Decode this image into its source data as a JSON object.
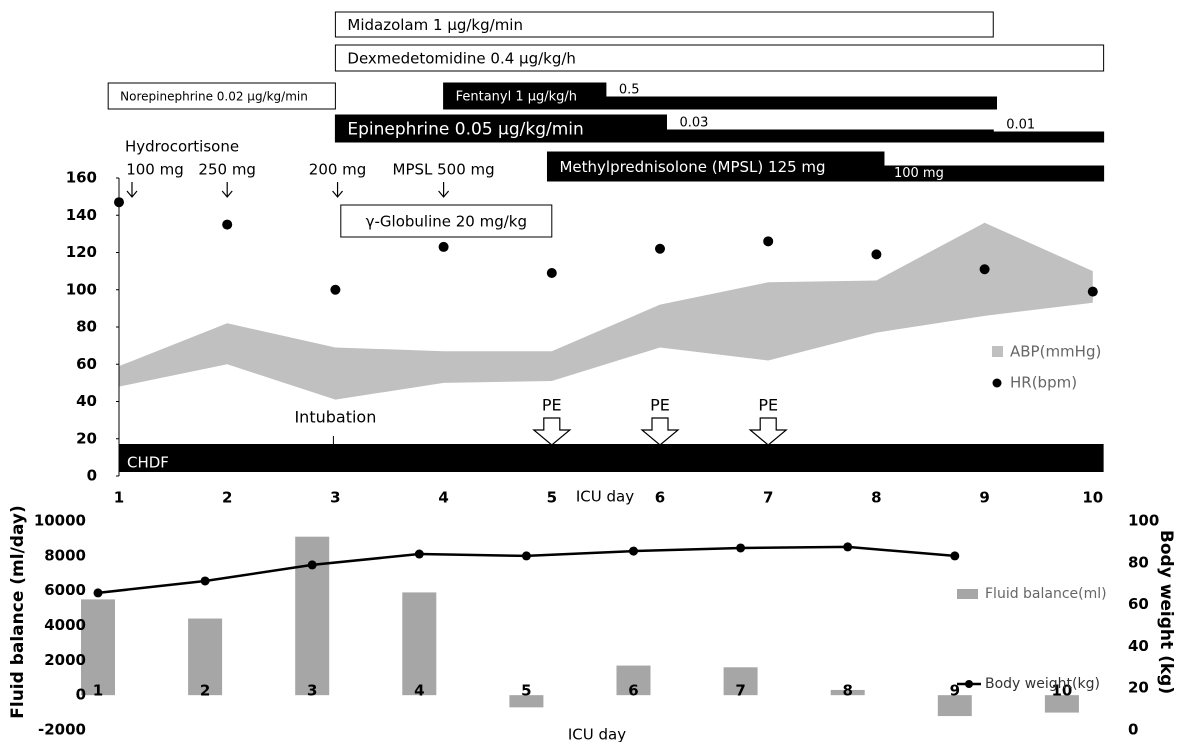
{
  "chart_data": [
    {
      "type": "combo",
      "x": [
        1,
        2,
        3,
        4,
        5,
        6,
        7,
        8,
        9,
        10
      ],
      "xticks": [
        1,
        2,
        3,
        4,
        5,
        6,
        7,
        8,
        9,
        10
      ],
      "xlim": [
        1,
        10.1
      ],
      "xlabel": "ICU day",
      "ylim": [
        0,
        160
      ],
      "yticks": [
        0,
        20,
        40,
        60,
        80,
        100,
        120,
        140,
        160
      ],
      "legend": "right",
      "series": [
        {
          "name": "ABP(mmHg)",
          "type": "range",
          "color": "#c0c0c0",
          "low": [
            48,
            60,
            41,
            50,
            51,
            69,
            62,
            77,
            86,
            93
          ],
          "high": [
            59,
            82,
            69,
            67,
            67,
            92,
            104,
            105,
            136,
            110
          ]
        },
        {
          "name": "HR(bpm)",
          "type": "scatter",
          "color": "#000000",
          "values": [
            147,
            135,
            100,
            123,
            109,
            122,
            126,
            119,
            111,
            99
          ]
        }
      ],
      "drugs": [
        {
          "label": "Midazolam 1 μg/kg/min",
          "fill": "#ffffff",
          "segments": [
            {
              "start": 3,
              "end": 9.08
            }
          ]
        },
        {
          "label": "Dexmedetomidine 0.4 μg/kg/h",
          "fill": "#ffffff",
          "segments": [
            {
              "start": 3,
              "end": 10.1
            }
          ]
        },
        {
          "label": "Norepinephrine 0.02 μg/kg/min",
          "fill": "#ffffff",
          "segments": [
            {
              "start": 0.9,
              "end": 3
            }
          ]
        },
        {
          "label": "Fentanyl 1 μg/kg/h",
          "fill": "#000000",
          "segments": [
            {
              "start": 4,
              "end": 5.5
            },
            {
              "start": 5.5,
              "end": 9.11,
              "label": "0.5"
            }
          ]
        },
        {
          "label": "Epinephrine  0.05 μg/kg/min",
          "fill": "#000000",
          "segments": [
            {
              "start": 3,
              "end": 6.06
            },
            {
              "start": 6.06,
              "end": 9.08,
              "label": "0.03"
            },
            {
              "start": 9.08,
              "end": 10.1,
              "label": "0.01"
            }
          ]
        },
        {
          "label": "Methylprednisolone (MPSL) 125 mg",
          "fill": "#000000",
          "segments": [
            {
              "start": 4.96,
              "end": 8.07
            },
            {
              "start": 8.07,
              "end": 10.1,
              "label": "100 mg"
            }
          ]
        }
      ],
      "hydrocortisone": "Hydrocortisone",
      "doses": [
        {
          "text": "100 mg",
          "x": 1.12
        },
        {
          "text": "250 mg",
          "x": 2
        },
        {
          "text": "200 mg",
          "x": 3.02
        },
        {
          "text": "MPSL 500 mg",
          "x": 4
        }
      ],
      "globuline": {
        "label": "γ-Globuline 20 mg/kg",
        "start": 3.05,
        "end": 5
      },
      "intubation": {
        "label": "Intubation",
        "x": 3
      },
      "events": [
        {
          "label": "PE",
          "x": 5
        },
        {
          "label": "PE",
          "x": 6
        },
        {
          "label": "PE",
          "x": 7
        }
      ],
      "therapy": {
        "label": "CHDF",
        "start": 1,
        "end": 10.1
      }
    },
    {
      "type": "combo",
      "categories": [
        1,
        2,
        3,
        4,
        5,
        6,
        7,
        8,
        9,
        10
      ],
      "xlabel": "ICU day",
      "ylabel": "Fluid balance (ml/day)",
      "y2label": "Body weight (kg)",
      "ylim": [
        -2000,
        10000
      ],
      "yticks": [
        -2000,
        0,
        2000,
        4000,
        6000,
        8000,
        10000
      ],
      "y2lim": [
        0,
        100
      ],
      "y2ticks": [
        0,
        20,
        40,
        60,
        80,
        100
      ],
      "legend": "right",
      "series": [
        {
          "name": "Fluid balance(ml)",
          "type": "bar",
          "color": "#a6a6a6",
          "values": [
            5500,
            4400,
            9100,
            5900,
            -700,
            1700,
            1600,
            300,
            -1200,
            -1000
          ]
        },
        {
          "name": "Body weight(kg)",
          "type": "line",
          "color": "#000000",
          "axis": "y2",
          "values": [
            65.6,
            71.3,
            79,
            84.2,
            83.3,
            85.6,
            87.1,
            87.6,
            83.3,
            null
          ]
        }
      ]
    }
  ]
}
